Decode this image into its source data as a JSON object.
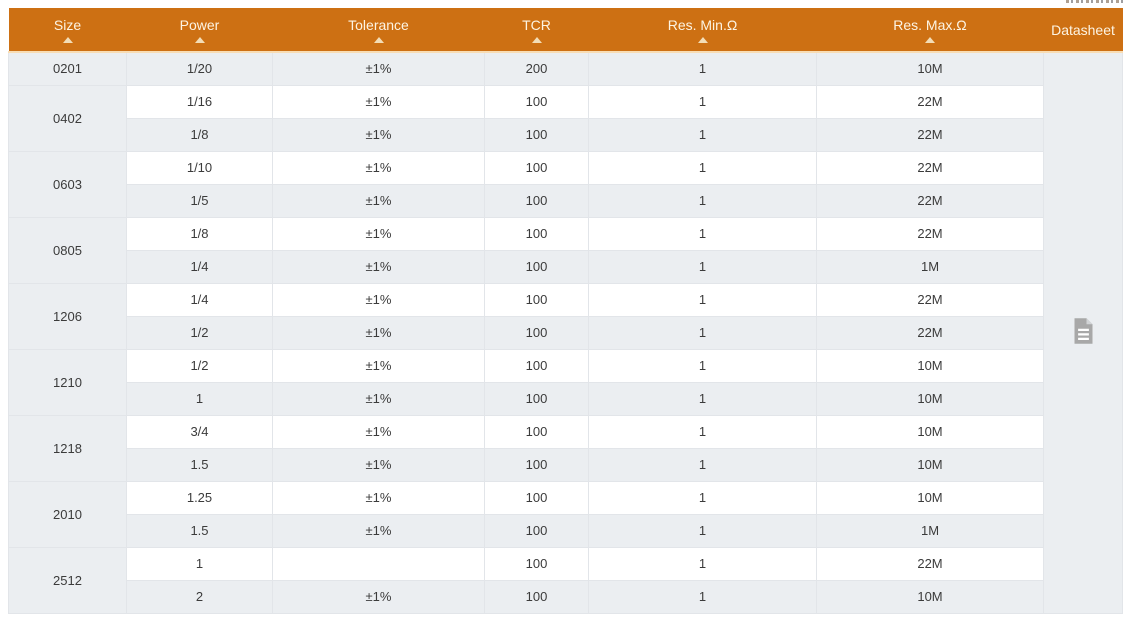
{
  "header": {
    "columns": [
      {
        "label": "Size",
        "sortable": true
      },
      {
        "label": "Power",
        "sortable": true
      },
      {
        "label": "Tolerance",
        "sortable": true
      },
      {
        "label": "TCR",
        "sortable": true
      },
      {
        "label": "Res. Min.Ω",
        "sortable": true
      },
      {
        "label": "Res. Max.Ω",
        "sortable": true
      },
      {
        "label": "Datasheet",
        "sortable": false
      }
    ]
  },
  "table": {
    "column_keys": [
      "power",
      "tolerance",
      "tcr",
      "res_min",
      "res_max"
    ],
    "groups": [
      {
        "size": "0201",
        "rows": [
          [
            "1/20",
            "±1%",
            "200",
            "1",
            "10M"
          ]
        ]
      },
      {
        "size": "0402",
        "rows": [
          [
            "1/16",
            "±1%",
            "100",
            "1",
            "22M"
          ],
          [
            "1/8",
            "±1%",
            "100",
            "1",
            "22M"
          ]
        ]
      },
      {
        "size": "0603",
        "rows": [
          [
            "1/10",
            "±1%",
            "100",
            "1",
            "22M"
          ],
          [
            "1/5",
            "±1%",
            "100",
            "1",
            "22M"
          ]
        ]
      },
      {
        "size": "0805",
        "rows": [
          [
            "1/8",
            "±1%",
            "100",
            "1",
            "22M"
          ],
          [
            "1/4",
            "±1%",
            "100",
            "1",
            "1M"
          ]
        ]
      },
      {
        "size": "1206",
        "rows": [
          [
            "1/4",
            "±1%",
            "100",
            "1",
            "22M"
          ],
          [
            "1/2",
            "±1%",
            "100",
            "1",
            "22M"
          ]
        ]
      },
      {
        "size": "1210",
        "rows": [
          [
            "1/2",
            "±1%",
            "100",
            "1",
            "10M"
          ],
          [
            "1",
            "±1%",
            "100",
            "1",
            "10M"
          ]
        ]
      },
      {
        "size": "1218",
        "rows": [
          [
            "3/4",
            "±1%",
            "100",
            "1",
            "10M"
          ],
          [
            "1.5",
            "±1%",
            "100",
            "1",
            "10M"
          ]
        ]
      },
      {
        "size": "2010",
        "rows": [
          [
            "1.25",
            "±1%",
            "100",
            "1",
            "10M"
          ],
          [
            "1.5",
            "±1%",
            "100",
            "1",
            "1M"
          ]
        ]
      },
      {
        "size": "2512",
        "rows": [
          [
            "1",
            "",
            "100",
            "1",
            "22M"
          ],
          [
            "2",
            "±1%",
            "100",
            "1",
            "10M"
          ]
        ]
      }
    ],
    "datasheet": {
      "icon": "document-icon"
    }
  },
  "colors": {
    "header_bg": "#cd7013",
    "header_text": "#fdf4e3",
    "sort_arrow": "#f3ddb6",
    "row_alt_bg": "#ebeef1",
    "row_bg": "#ffffff",
    "border": "#e2e5e9",
    "text": "#3b3b3b",
    "icon": "#a8a8a8"
  }
}
